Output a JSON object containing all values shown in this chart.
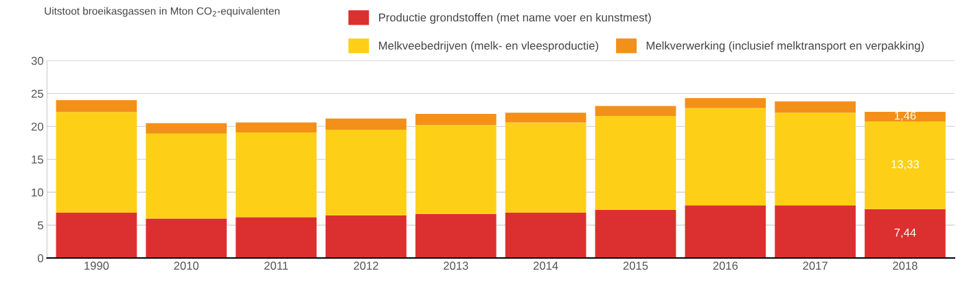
{
  "chart_data": {
    "type": "bar",
    "stacked": true,
    "ylabel": "Uitstoot broeikasgassen in Mton CO$_{2}$-equivalenten",
    "categories": [
      "1990",
      "2010",
      "2011",
      "2012",
      "2013",
      "2014",
      "2015",
      "2016",
      "2017",
      "2018"
    ],
    "series": [
      {
        "name": "Productie grondstoffen (met name voer en kunstmest)",
        "color": "#dc3030",
        "values": [
          6.9,
          6.0,
          6.2,
          6.5,
          6.7,
          6.9,
          7.3,
          8.0,
          8.0,
          7.44
        ],
        "value_labels": [
          null,
          null,
          null,
          null,
          null,
          null,
          null,
          null,
          null,
          "7,44"
        ]
      },
      {
        "name": "Melkveebedrijven (melk- en vleesproductie)",
        "color": "#fdd017",
        "values": [
          15.3,
          12.9,
          12.9,
          13.0,
          13.5,
          13.7,
          14.3,
          14.8,
          14.1,
          13.33
        ],
        "value_labels": [
          null,
          null,
          null,
          null,
          null,
          null,
          null,
          null,
          null,
          "13,33"
        ]
      },
      {
        "name": "Melkverwerking (inclusief melktransport en verpakking)",
        "color": "#f39019",
        "values": [
          1.8,
          1.6,
          1.5,
          1.7,
          1.7,
          1.5,
          1.5,
          1.5,
          1.7,
          1.46
        ],
        "value_labels": [
          null,
          null,
          null,
          null,
          null,
          null,
          null,
          null,
          null,
          "1,46"
        ]
      }
    ],
    "ylim": [
      0,
      30
    ],
    "yticks": [
      0,
      5,
      10,
      15,
      20,
      25,
      30
    ],
    "grid": "y",
    "legend": "top right"
  }
}
